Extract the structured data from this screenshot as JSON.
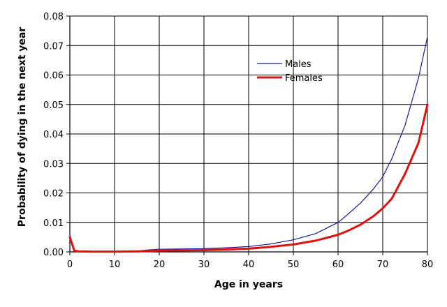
{
  "chart_data": {
    "type": "line",
    "title": "",
    "xlabel": "Age in years",
    "ylabel": "Probability of dying in the next year",
    "xlim": [
      0,
      80
    ],
    "ylim": [
      0,
      0.08
    ],
    "x_ticks": [
      0,
      10,
      20,
      30,
      40,
      50,
      60,
      70,
      80
    ],
    "y_ticks": [
      0.0,
      0.01,
      0.02,
      0.03,
      0.04,
      0.05,
      0.06,
      0.07,
      0.08
    ],
    "x_tick_labels": [
      "0",
      "10",
      "20",
      "30",
      "40",
      "50",
      "60",
      "70",
      "80"
    ],
    "y_tick_labels": [
      "0.00",
      "0.01",
      "0.02",
      "0.03",
      "0.04",
      "0.05",
      "0.06",
      "0.07",
      "0.08"
    ],
    "grid": true,
    "legend_position": "upper-center",
    "series": [
      {
        "name": "Males",
        "color": "#1a1a99",
        "x": [
          0,
          1,
          2,
          5,
          10,
          15,
          18,
          20,
          25,
          30,
          35,
          40,
          45,
          50,
          55,
          60,
          62,
          65,
          68,
          70,
          72,
          75,
          78,
          80
        ],
        "y": [
          0.0058,
          0.0004,
          0.0003,
          0.0002,
          0.0002,
          0.0003,
          0.0007,
          0.0009,
          0.001,
          0.0011,
          0.0014,
          0.0018,
          0.0027,
          0.0041,
          0.0062,
          0.01,
          0.0125,
          0.0165,
          0.0215,
          0.0255,
          0.0315,
          0.043,
          0.059,
          0.073
        ]
      },
      {
        "name": "Females",
        "color": "#dd1111",
        "x": [
          0,
          1,
          2,
          5,
          10,
          15,
          18,
          20,
          25,
          30,
          35,
          40,
          45,
          50,
          55,
          60,
          62,
          65,
          68,
          70,
          72,
          75,
          78,
          80
        ],
        "y": [
          0.005,
          0.0004,
          0.0002,
          0.0001,
          0.0001,
          0.0002,
          0.0003,
          0.0004,
          0.0005,
          0.0006,
          0.0008,
          0.0011,
          0.0017,
          0.0025,
          0.0038,
          0.0058,
          0.007,
          0.0092,
          0.0122,
          0.0148,
          0.018,
          0.0265,
          0.037,
          0.05
        ]
      }
    ]
  }
}
